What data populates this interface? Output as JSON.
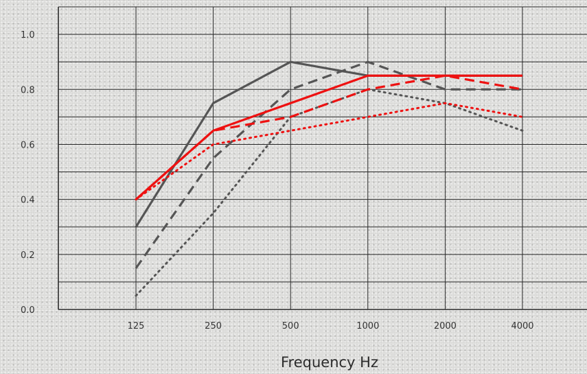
{
  "chart_data": {
    "type": "line",
    "title": "",
    "xlabel": "Frequency Hz",
    "ylabel": "",
    "x": [
      125,
      250,
      500,
      1000,
      2000,
      4000
    ],
    "x_tick_labels": [
      "125",
      "250",
      "500",
      "1000",
      "2000",
      "4000"
    ],
    "y_tick_labels": [
      "0.0",
      "0.2",
      "0.4",
      "0.6",
      "0.8",
      "1.0"
    ],
    "ylim": [
      0,
      1.1
    ],
    "grid": true,
    "series": [
      {
        "values": [
          0.3,
          0.75,
          0.9,
          0.85,
          0.85,
          0.85
        ],
        "color": "#555555",
        "style": "solid"
      },
      {
        "values": [
          0.15,
          0.55,
          0.8,
          0.9,
          0.8,
          0.8
        ],
        "color": "#555555",
        "style": "dashed"
      },
      {
        "values": [
          0.05,
          0.35,
          0.7,
          0.8,
          0.75,
          0.65
        ],
        "color": "#555555",
        "style": "dotted"
      },
      {
        "values": [
          0.4,
          0.65,
          0.75,
          0.85,
          0.85,
          0.85
        ],
        "color": "#ee1111",
        "style": "solid"
      },
      {
        "values": [
          0.4,
          0.65,
          0.7,
          0.8,
          0.85,
          0.8
        ],
        "color": "#ee1111",
        "style": "dashed"
      },
      {
        "values": [
          0.4,
          0.6,
          0.65,
          0.7,
          0.75,
          0.7
        ],
        "color": "#ee1111",
        "style": "dotted"
      }
    ]
  },
  "colors": {
    "grid": "#2a2a2a",
    "gray_series": "#555555",
    "red_series": "#ee1111"
  }
}
